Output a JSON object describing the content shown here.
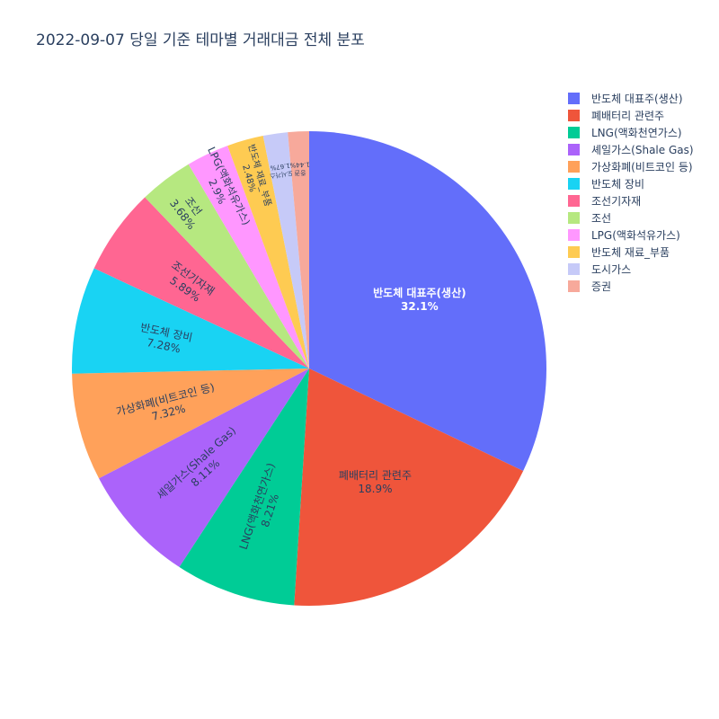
{
  "chart_data": {
    "type": "pie",
    "title": "2022-09-07 당일 기준 테마별 거래대금 전체 분포",
    "categories": [
      "반도체 대표주(생산)",
      "폐배터리 관련주",
      "LNG(액화천연가스)",
      "셰일가스(Shale Gas)",
      "가상화폐(비트코인 등)",
      "반도체 장비",
      "조선기자재",
      "조선",
      "LPG(액화석유가스)",
      "반도체 재료_부품",
      "도시가스",
      "증권"
    ],
    "values": [
      32.1,
      18.9,
      8.21,
      8.11,
      7.32,
      7.28,
      5.89,
      3.68,
      2.9,
      2.48,
      1.67,
      1.44
    ],
    "labels": [
      "32.1%",
      "18.9%",
      "8.21%",
      "8.11%",
      "7.32%",
      "7.28%",
      "5.89%",
      "3.68%",
      "2.9%",
      "2.48%",
      "1.67%",
      "1.44%"
    ],
    "colors": [
      "#636efa",
      "#EF553B",
      "#00cc96",
      "#ab63fa",
      "#FFA15A",
      "#19d3f3",
      "#FF6692",
      "#B6E880",
      "#FF97FF",
      "#FECB52",
      "#c6caf8",
      "#f7a99b"
    ],
    "legend_position": "top-right"
  }
}
